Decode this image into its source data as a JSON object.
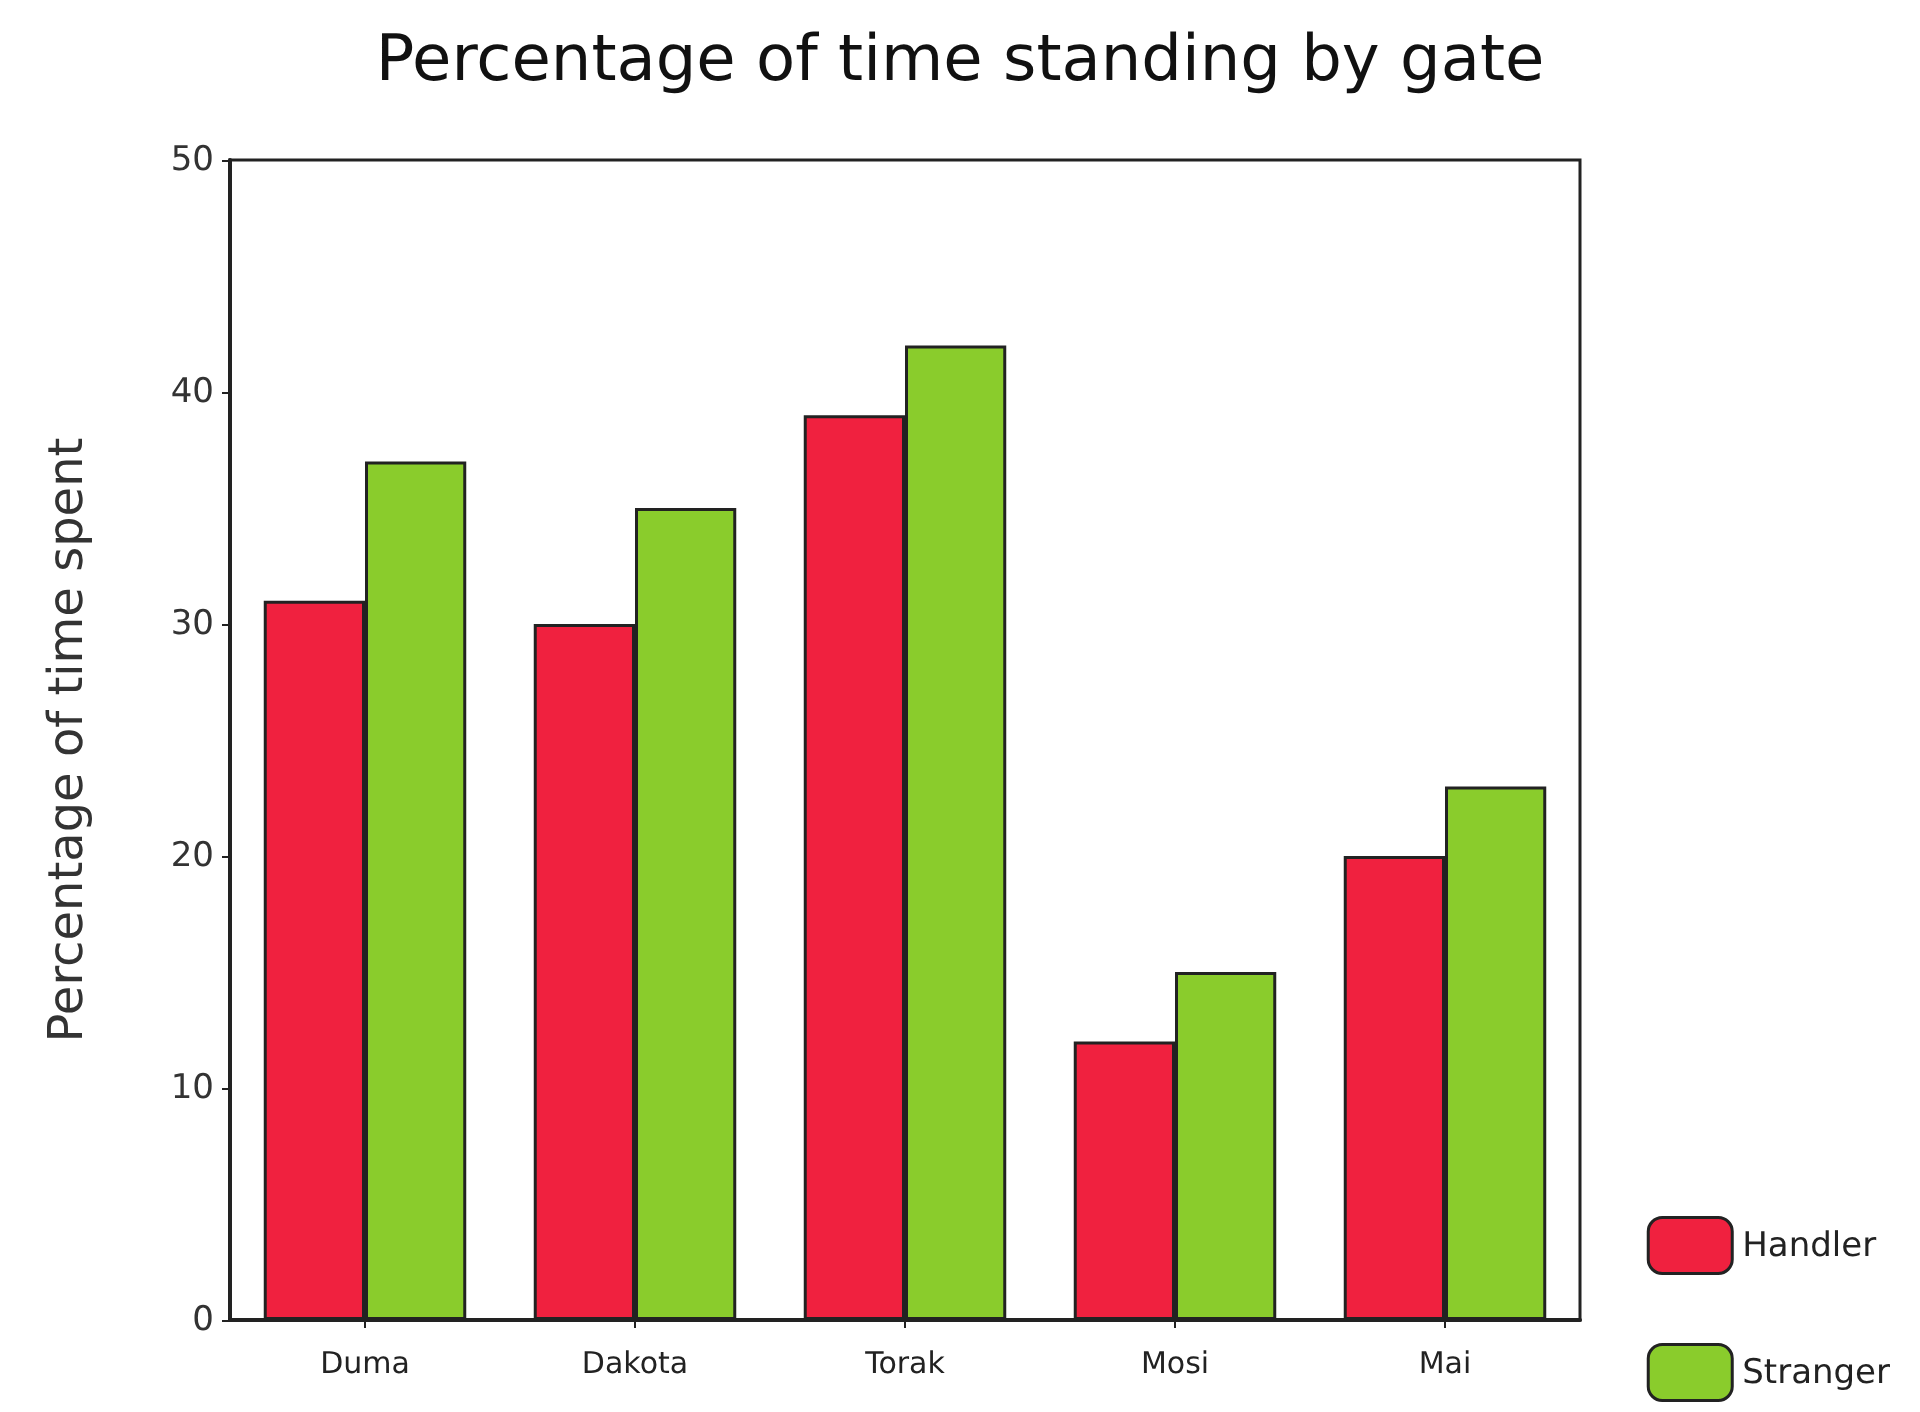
{
  "chart_data": {
    "type": "bar",
    "title": "Percentage of time standing by gate",
    "ylabel": "Percentage of time spent",
    "categories": [
      "Duma",
      "Dakota",
      "Torak",
      "Mosi",
      "Mai"
    ],
    "series": [
      {
        "name": "Handler",
        "color": "#f0213f",
        "values": [
          31,
          30,
          39,
          12,
          20
        ]
      },
      {
        "name": "Stranger",
        "color": "#8acc2c",
        "values": [
          37,
          35,
          42,
          15,
          23
        ]
      }
    ],
    "ylim": [
      0,
      50
    ],
    "yticks": [
      0,
      10,
      20,
      30,
      40,
      50
    ],
    "grid": false,
    "legend": "right"
  }
}
